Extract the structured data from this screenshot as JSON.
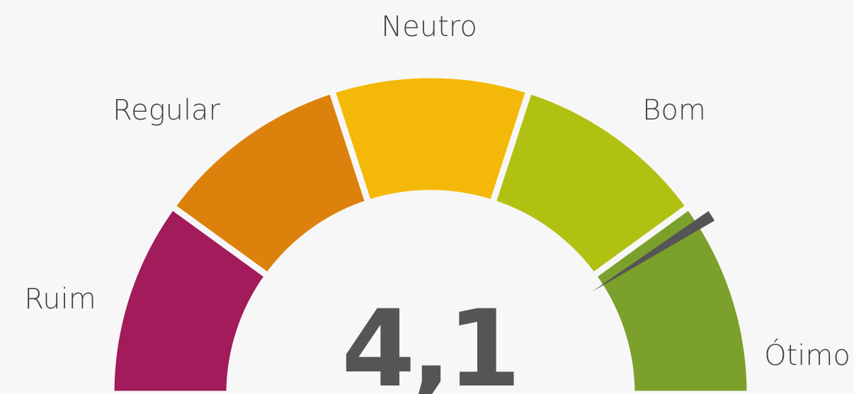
{
  "chart_data": {
    "type": "gauge",
    "categories": [
      "Ruim",
      "Regular",
      "Neutro",
      "Bom",
      "Ótimo"
    ],
    "colors": [
      "#a21b5a",
      "#dc820c",
      "#f4b908",
      "#b1c112",
      "#7ba02b"
    ],
    "range": [
      0,
      5
    ],
    "value": 4.1,
    "value_label": "4,1",
    "needle_color": "#555555"
  }
}
